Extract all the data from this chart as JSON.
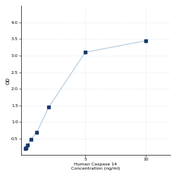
{
  "x": [
    0.0625,
    0.125,
    0.25,
    0.5,
    1,
    2,
    5,
    10
  ],
  "y": [
    0.19,
    0.22,
    0.3,
    0.47,
    0.68,
    1.45,
    3.1,
    3.45
  ],
  "line_color": "#adc8e0",
  "marker_color": "#1a3a6b",
  "marker_size": 3,
  "line_width": 0.8,
  "xlabel_line1": "Human Caspase 14",
  "xlabel_line2": "Concentration (ng/ml)",
  "ylabel": "OD",
  "xlim": [
    -0.3,
    12
  ],
  "ylim": [
    0,
    4.5
  ],
  "yticks": [
    0.5,
    1.0,
    1.5,
    2.0,
    2.5,
    3.0,
    3.5,
    4.0
  ],
  "xtick_positions": [
    5,
    10
  ],
  "xtick_labels": [
    "5",
    "10"
  ],
  "grid_color": "#dde8f0",
  "bg_color": "#ffffff",
  "xlabel_fontsize": 4.5,
  "ylabel_fontsize": 5,
  "tick_fontsize": 4.5
}
